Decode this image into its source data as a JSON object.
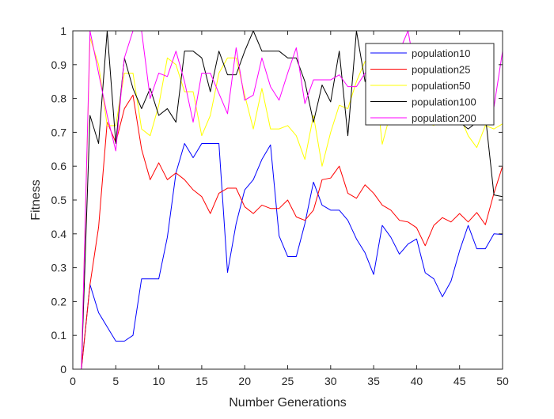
{
  "chart_data": {
    "type": "line",
    "xlabel": "Number Generations",
    "ylabel": "Fitness",
    "xlim": [
      0,
      50
    ],
    "ylim": [
      0,
      1
    ],
    "xticks": [
      0,
      5,
      10,
      15,
      20,
      25,
      30,
      35,
      40,
      45,
      50
    ],
    "yticks": [
      0,
      0.1,
      0.2,
      0.3,
      0.4,
      0.5,
      0.6,
      0.7,
      0.8,
      0.9,
      1
    ],
    "xtick_labels": [
      "0",
      "5",
      "10",
      "15",
      "20",
      "25",
      "30",
      "35",
      "40",
      "45",
      "50"
    ],
    "ytick_labels": [
      "0",
      "0.1",
      "0.2",
      "0.3",
      "0.4",
      "0.5",
      "0.6",
      "0.7",
      "0.8",
      "0.9",
      "1"
    ],
    "grid": false,
    "legend_position": "top-right",
    "x": [
      1,
      2,
      3,
      4,
      5,
      6,
      7,
      8,
      9,
      10,
      11,
      12,
      13,
      14,
      15,
      16,
      17,
      18,
      19,
      20,
      21,
      22,
      23,
      24,
      25,
      26,
      27,
      28,
      29,
      30,
      31,
      32,
      33,
      34,
      35,
      36,
      37,
      38,
      39,
      40,
      41,
      42,
      43,
      44,
      45,
      46,
      47,
      48,
      49,
      50
    ],
    "series": [
      {
        "name": "population10",
        "color": "#0000ff",
        "values": [
          0,
          0.25,
          0.167,
          0.125,
          0.083,
          0.083,
          0.1,
          0.267,
          0.267,
          0.267,
          0.39,
          0.58,
          0.667,
          0.625,
          0.667,
          0.667,
          0.667,
          0.286,
          0.43,
          0.53,
          0.56,
          0.62,
          0.663,
          0.394,
          0.333,
          0.333,
          0.43,
          0.553,
          0.485,
          0.47,
          0.47,
          0.44,
          0.385,
          0.344,
          0.28,
          0.425,
          0.39,
          0.34,
          0.37,
          0.385,
          0.285,
          0.267,
          0.214,
          0.26,
          0.35,
          0.425,
          0.356,
          0.356,
          0.4,
          0.398
        ]
      },
      {
        "name": "population25",
        "color": "#ff0000",
        "values": [
          0,
          0.25,
          0.42,
          0.73,
          0.67,
          0.77,
          0.81,
          0.65,
          0.56,
          0.61,
          0.56,
          0.58,
          0.56,
          0.53,
          0.51,
          0.46,
          0.52,
          0.535,
          0.535,
          0.48,
          0.46,
          0.485,
          0.475,
          0.475,
          0.5,
          0.45,
          0.44,
          0.47,
          0.56,
          0.565,
          0.6,
          0.52,
          0.505,
          0.545,
          0.52,
          0.485,
          0.47,
          0.44,
          0.435,
          0.418,
          0.365,
          0.425,
          0.448,
          0.435,
          0.46,
          0.435,
          0.463,
          0.427,
          0.52,
          0.6
        ]
      },
      {
        "name": "population50",
        "color": "#ffff00",
        "values": [
          0,
          0.98,
          0.9,
          0.72,
          0.72,
          0.875,
          0.875,
          0.71,
          0.69,
          0.78,
          0.92,
          0.9,
          0.82,
          0.82,
          0.69,
          0.75,
          0.875,
          0.92,
          0.92,
          0.81,
          0.71,
          0.83,
          0.71,
          0.71,
          0.72,
          0.69,
          0.62,
          0.75,
          0.6,
          0.7,
          0.78,
          0.77,
          0.85,
          0.91,
          0.9,
          0.665,
          0.76,
          0.8,
          0.87,
          0.75,
          0.73,
          0.72,
          0.77,
          0.8,
          0.75,
          0.69,
          0.655,
          0.72,
          0.71,
          0.725
        ]
      },
      {
        "name": "population100",
        "color": "#000000",
        "values": [
          0,
          0.75,
          0.667,
          1,
          0.667,
          0.92,
          0.83,
          0.77,
          0.83,
          0.75,
          0.77,
          0.73,
          0.94,
          0.94,
          0.92,
          0.82,
          0.94,
          0.87,
          0.87,
          0.94,
          1,
          0.94,
          0.94,
          0.94,
          0.92,
          0.92,
          0.85,
          0.73,
          0.84,
          0.79,
          0.94,
          0.69,
          1,
          0.85,
          0.95,
          0.8,
          0.95,
          0.94,
          0.95,
          0.95,
          0.8,
          0.8,
          0.95,
          0.73,
          0.73,
          0.71,
          0.73,
          0.75,
          0.515,
          0.51
        ]
      },
      {
        "name": "population200",
        "color": "#ff00ff",
        "values": [
          0,
          1,
          0.875,
          0.75,
          0.645,
          0.92,
          1,
          1,
          0.8,
          0.875,
          0.865,
          0.94,
          0.85,
          0.73,
          0.875,
          0.875,
          0.815,
          0.755,
          0.95,
          0.795,
          0.81,
          0.92,
          0.835,
          0.795,
          0.875,
          0.95,
          0.785,
          0.855,
          0.855,
          0.855,
          0.87,
          0.835,
          0.835,
          0.875,
          0.9,
          0.905,
          0.9,
          0.94,
          1,
          0.86,
          0.875,
          0.9,
          0.83,
          0.81,
          0.82,
          0.87,
          0.82,
          0.875,
          0.775,
          0.94
        ]
      }
    ]
  }
}
